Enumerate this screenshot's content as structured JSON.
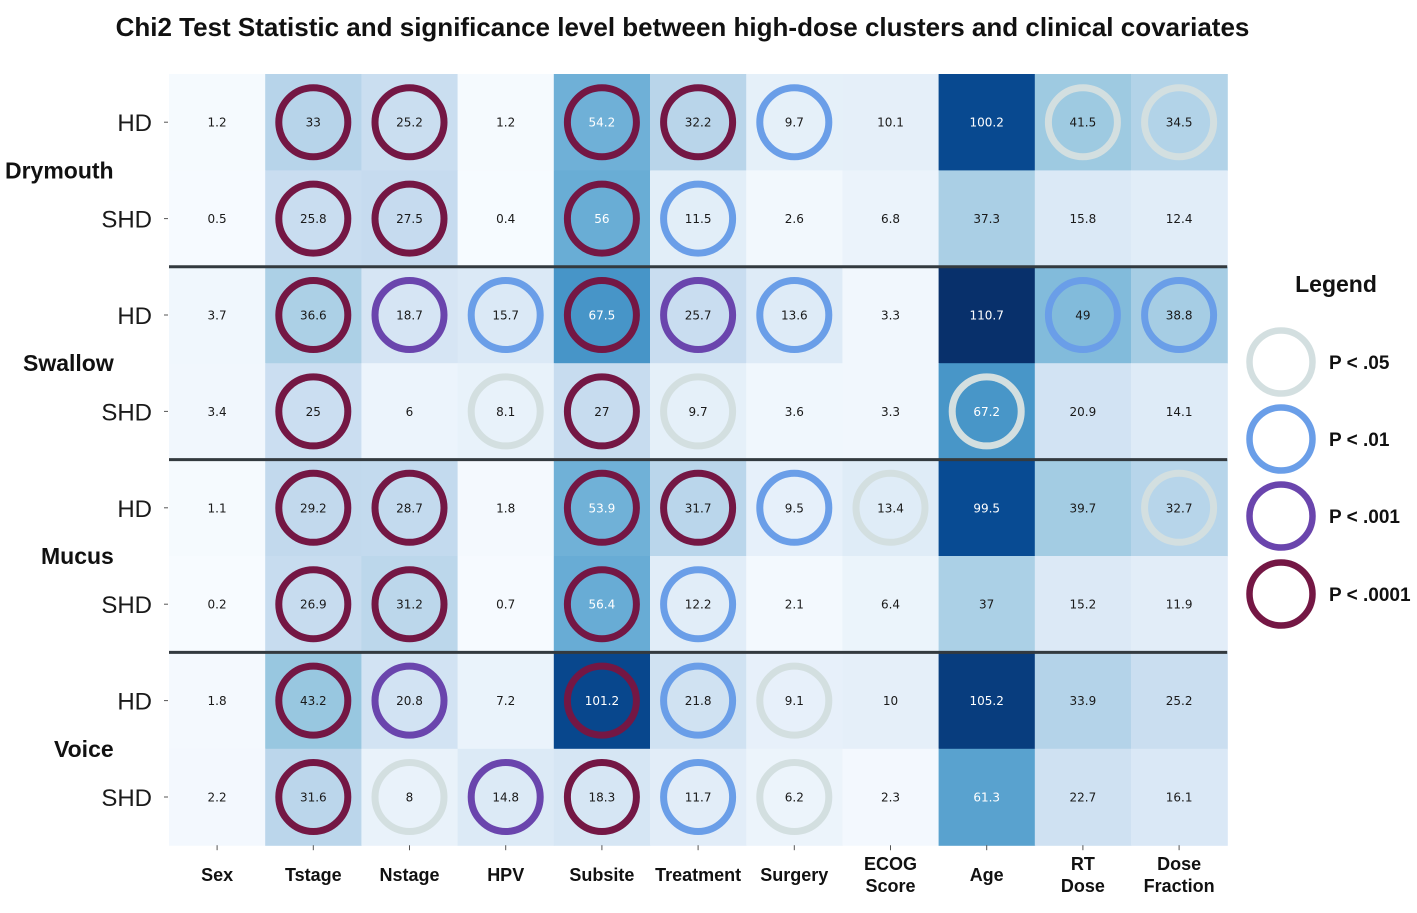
{
  "chart_data": {
    "type": "heatmap",
    "title": "Chi2 Test Statistic and significance level between high-dose clusters and clinical covariates",
    "columns": [
      "Sex",
      "Tstage",
      "Nstage",
      "HPV",
      "Subsite",
      "Treatment",
      "Surgery",
      "ECOG Score",
      "Age",
      "RT Dose",
      "Dose Fraction"
    ],
    "groups": [
      "Drymouth",
      "Swallow",
      "Mucus",
      "Voice"
    ],
    "row_labels": [
      "HD",
      "SHD",
      "HD",
      "SHD",
      "HD",
      "SHD",
      "HD",
      "SHD"
    ],
    "values": [
      [
        1.2,
        33,
        25.2,
        1.2,
        54.2,
        32.2,
        9.7,
        10.1,
        100.2,
        41.5,
        34.5
      ],
      [
        0.5,
        25.8,
        27.5,
        0.4,
        56,
        11.5,
        2.6,
        6.8,
        37.3,
        15.8,
        12.4
      ],
      [
        3.7,
        36.6,
        18.7,
        15.7,
        67.5,
        25.7,
        13.6,
        3.3,
        110.7,
        49,
        38.8
      ],
      [
        3.4,
        25,
        6,
        8.1,
        27,
        9.7,
        3.6,
        3.3,
        67.2,
        20.9,
        14.1
      ],
      [
        1.1,
        29.2,
        28.7,
        1.8,
        53.9,
        31.7,
        9.5,
        13.4,
        99.5,
        39.7,
        32.7
      ],
      [
        0.2,
        26.9,
        31.2,
        0.7,
        56.4,
        12.2,
        2.1,
        6.4,
        37,
        15.2,
        11.9
      ],
      [
        1.8,
        43.2,
        20.8,
        7.2,
        101.2,
        21.8,
        9.1,
        10,
        105.2,
        33.9,
        25.2
      ],
      [
        2.2,
        31.6,
        8,
        14.8,
        18.3,
        11.7,
        6.2,
        2.3,
        61.3,
        22.7,
        16.1
      ]
    ],
    "significance": [
      [
        null,
        "p0001",
        "p0001",
        null,
        "p0001",
        "p0001",
        "p01",
        null,
        null,
        "p05",
        "p05"
      ],
      [
        null,
        "p0001",
        "p0001",
        null,
        "p0001",
        "p01",
        null,
        null,
        null,
        null,
        null
      ],
      [
        null,
        "p0001",
        "p001",
        "p01",
        "p0001",
        "p001",
        "p01",
        null,
        null,
        "p01",
        "p01"
      ],
      [
        null,
        "p0001",
        null,
        "p05",
        "p0001",
        "p05",
        null,
        null,
        "p05",
        null,
        null
      ],
      [
        null,
        "p0001",
        "p0001",
        null,
        "p0001",
        "p0001",
        "p01",
        "p05",
        null,
        null,
        "p05"
      ],
      [
        null,
        "p0001",
        "p0001",
        null,
        "p0001",
        "p01",
        null,
        null,
        null,
        null,
        null
      ],
      [
        null,
        "p0001",
        "p001",
        null,
        "p0001",
        "p01",
        "p05",
        null,
        null,
        null,
        null
      ],
      [
        null,
        "p0001",
        "p05",
        "p001",
        "p0001",
        "p01",
        "p05",
        null,
        null,
        null,
        null
      ]
    ],
    "color_scale": {
      "min": 0,
      "max": 110.7,
      "low_color": "#f7fbff",
      "high_color": "#08306b"
    },
    "legend": {
      "title": "Legend",
      "items": [
        {
          "key": "p05",
          "label": "P < .05",
          "color": "#d3dfe0"
        },
        {
          "key": "p01",
          "label": "P < .01",
          "color": "#6a9ee8"
        },
        {
          "key": "p001",
          "label": "P < .001",
          "color": "#6a45ad"
        },
        {
          "key": "p0001",
          "label": "P < .0001",
          "color": "#741744"
        }
      ],
      "position": "right"
    }
  }
}
